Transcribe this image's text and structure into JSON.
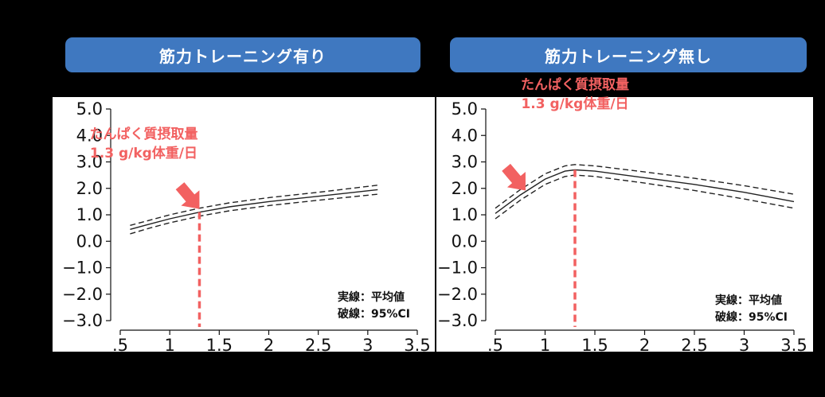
{
  "headers": {
    "left": "筋力トレーニング有り",
    "right": "筋力トレーニング無し"
  },
  "colors": {
    "background": "#000000",
    "header_fill": "#3f78c0",
    "header_text": "#ffffff",
    "annotation": "#f26161",
    "line": "#222222"
  },
  "chart_data": [
    {
      "type": "line",
      "title": "筋力トレーニング有り",
      "xlim": [
        0.5,
        3.5
      ],
      "ylim": [
        -3.0,
        5.0
      ],
      "x_ticks": [
        0.5,
        1,
        1.5,
        2,
        2.5,
        3,
        3.5
      ],
      "x_tick_labels": [
        ".5",
        "1",
        "1.5",
        "2",
        "2.5",
        "3",
        "3.5"
      ],
      "y_ticks": [
        5.0,
        4.0,
        3.0,
        2.0,
        1.0,
        0.0,
        -1.0,
        -2.0,
        -3.0
      ],
      "y_tick_labels": [
        "5.0",
        "4.0",
        "3.0",
        "2.0",
        "1.0",
        "0.0",
        "−1.0",
        "−2.0",
        "−3.0"
      ],
      "grid": false,
      "series": [
        {
          "role": "mean",
          "style": "solid",
          "x": [
            0.6,
            0.8,
            1.0,
            1.3,
            1.6,
            2.0,
            2.5,
            3.1
          ],
          "y": [
            0.45,
            0.65,
            0.85,
            1.1,
            1.3,
            1.5,
            1.7,
            1.95
          ]
        },
        {
          "role": "ci_upper",
          "style": "dashed",
          "x": [
            0.6,
            0.8,
            1.0,
            1.3,
            1.6,
            2.0,
            2.5,
            3.1
          ],
          "y": [
            0.6,
            0.8,
            1.0,
            1.25,
            1.45,
            1.65,
            1.85,
            2.12
          ]
        },
        {
          "role": "ci_lower",
          "style": "dashed",
          "x": [
            0.6,
            0.8,
            1.0,
            1.3,
            1.6,
            2.0,
            2.5,
            3.1
          ],
          "y": [
            0.28,
            0.5,
            0.7,
            0.95,
            1.15,
            1.35,
            1.55,
            1.78
          ]
        }
      ],
      "reference_line": {
        "x": 1.3,
        "style": "dashed"
      },
      "annotation": {
        "line1": "たんぱく質摂取量",
        "line2": "1.3 g/kg体重/日",
        "arrow_to_x": 1.3
      },
      "legend": {
        "line1": "実線：平均値",
        "line2": "破線：95%CI",
        "position": "bottom-right"
      }
    },
    {
      "type": "line",
      "title": "筋力トレーニング無し",
      "xlim": [
        0.5,
        3.5
      ],
      "ylim": [
        -3.0,
        5.0
      ],
      "x_ticks": [
        0.5,
        1,
        1.5,
        2,
        2.5,
        3,
        3.5
      ],
      "x_tick_labels": [
        ".5",
        "1",
        "1.5",
        "2",
        "2.5",
        "3",
        "3.5"
      ],
      "y_ticks": [
        5.0,
        4.0,
        3.0,
        2.0,
        1.0,
        0.0,
        -1.0,
        -2.0,
        -3.0
      ],
      "y_tick_labels": [
        "5.0",
        "4.0",
        "3.0",
        "2.0",
        "1.0",
        "0.0",
        "−1.0",
        "−2.0",
        "−3.0"
      ],
      "grid": false,
      "series": [
        {
          "role": "mean",
          "style": "solid",
          "x": [
            0.5,
            0.75,
            1.0,
            1.2,
            1.3,
            1.5,
            2.0,
            2.5,
            3.0,
            3.5
          ],
          "y": [
            1.05,
            1.75,
            2.35,
            2.65,
            2.7,
            2.65,
            2.4,
            2.15,
            1.85,
            1.5
          ]
        },
        {
          "role": "ci_upper",
          "style": "dashed",
          "x": [
            0.5,
            0.75,
            1.0,
            1.2,
            1.3,
            1.5,
            2.0,
            2.5,
            3.0,
            3.5
          ],
          "y": [
            1.25,
            1.95,
            2.55,
            2.85,
            2.9,
            2.85,
            2.62,
            2.38,
            2.1,
            1.78
          ]
        },
        {
          "role": "ci_lower",
          "style": "dashed",
          "x": [
            0.5,
            0.75,
            1.0,
            1.2,
            1.3,
            1.5,
            2.0,
            2.5,
            3.0,
            3.5
          ],
          "y": [
            0.85,
            1.55,
            2.15,
            2.45,
            2.5,
            2.45,
            2.2,
            1.92,
            1.6,
            1.25
          ]
        }
      ],
      "reference_line": {
        "x": 1.3,
        "style": "dashed"
      },
      "annotation": {
        "line1": "たんぱく質摂取量",
        "line2": "1.3 g/kg体重/日",
        "arrow_to_x": 1.3
      },
      "legend": {
        "line1": "実線：平均値",
        "line2": "破線：95%CI",
        "position": "bottom-right"
      }
    }
  ]
}
